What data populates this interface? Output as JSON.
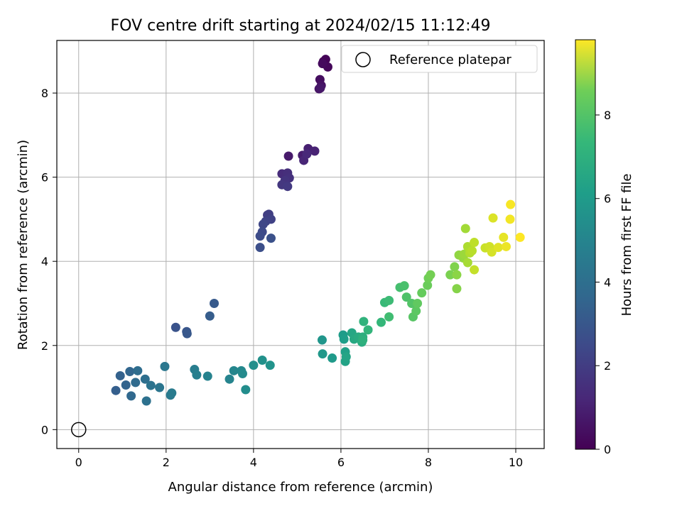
{
  "chart_data": {
    "type": "scatter",
    "title": "FOV centre drift starting at 2024/02/15 11:12:49",
    "xlabel": "Angular distance from reference (arcmin)",
    "ylabel": "Rotation from reference (arcmin)",
    "xlim": [
      -0.5,
      10.65
    ],
    "ylim": [
      -0.45,
      9.25
    ],
    "xticks": [
      0,
      2,
      4,
      6,
      8,
      10
    ],
    "yticks": [
      0,
      2,
      4,
      6,
      8
    ],
    "grid": true,
    "legend": {
      "placement": "top-right",
      "entries": [
        "Reference platepar"
      ]
    },
    "colorbar": {
      "label": "Hours from first FF file",
      "colormap": "viridis",
      "range": [
        0,
        9.8
      ],
      "ticks": [
        0,
        2,
        4,
        6,
        8
      ]
    },
    "reference_point": {
      "label": "Reference platepar",
      "x": 0,
      "y": 0
    },
    "series": [
      {
        "points": [
          [
            5.6,
            8.75
          ],
          [
            5.65,
            8.8
          ],
          [
            5.7,
            8.62
          ],
          [
            5.58,
            8.7
          ],
          [
            5.52,
            8.32
          ],
          [
            5.55,
            8.18
          ],
          [
            5.5,
            8.1
          ],
          [
            5.53,
            8.12
          ],
          [
            4.8,
            6.5
          ],
          [
            5.12,
            6.52
          ],
          [
            5.25,
            6.68
          ],
          [
            5.4,
            6.62
          ],
          [
            5.15,
            6.4
          ],
          [
            5.22,
            6.55
          ],
          [
            4.65,
            6.08
          ],
          [
            4.78,
            6.1
          ],
          [
            4.82,
            5.98
          ],
          [
            4.72,
            5.92
          ],
          [
            4.65,
            5.82
          ],
          [
            4.78,
            5.78
          ],
          [
            4.32,
            5.1
          ],
          [
            4.35,
            5.12
          ],
          [
            4.4,
            5.0
          ],
          [
            4.28,
            4.95
          ],
          [
            4.22,
            4.88
          ],
          [
            4.2,
            4.7
          ],
          [
            4.15,
            4.6
          ],
          [
            4.15,
            4.33
          ],
          [
            4.4,
            4.55
          ],
          [
            2.22,
            2.43
          ],
          [
            2.47,
            2.33
          ],
          [
            2.48,
            2.28
          ],
          [
            3.1,
            3.0
          ],
          [
            3.0,
            2.7
          ],
          [
            0.85,
            0.93
          ],
          [
            0.95,
            1.28
          ],
          [
            1.08,
            1.06
          ],
          [
            1.17,
            1.38
          ],
          [
            1.2,
            0.8
          ],
          [
            1.3,
            1.12
          ],
          [
            1.35,
            1.4
          ],
          [
            1.52,
            1.2
          ],
          [
            1.55,
            0.68
          ],
          [
            1.65,
            1.05
          ],
          [
            1.85,
            1.0
          ],
          [
            1.97,
            1.5
          ],
          [
            2.1,
            0.82
          ],
          [
            2.13,
            0.87
          ],
          [
            2.65,
            1.43
          ],
          [
            2.7,
            1.3
          ],
          [
            2.95,
            1.27
          ],
          [
            3.45,
            1.2
          ],
          [
            3.55,
            1.4
          ],
          [
            3.72,
            1.4
          ],
          [
            3.75,
            1.33
          ],
          [
            3.82,
            0.95
          ],
          [
            4.0,
            1.53
          ],
          [
            4.2,
            1.65
          ],
          [
            4.38,
            1.53
          ],
          [
            5.57,
            2.13
          ],
          [
            5.58,
            1.8
          ],
          [
            5.8,
            1.7
          ],
          [
            6.05,
            2.25
          ],
          [
            6.07,
            2.15
          ],
          [
            6.1,
            1.85
          ],
          [
            6.1,
            1.62
          ],
          [
            6.12,
            1.73
          ],
          [
            6.25,
            2.3
          ],
          [
            6.3,
            2.15
          ],
          [
            6.4,
            2.2
          ],
          [
            6.48,
            2.08
          ],
          [
            6.5,
            2.2
          ],
          [
            6.5,
            2.13
          ],
          [
            6.52,
            2.57
          ],
          [
            6.62,
            2.37
          ],
          [
            6.92,
            2.55
          ],
          [
            7.0,
            3.02
          ],
          [
            7.1,
            3.07
          ],
          [
            7.1,
            2.68
          ],
          [
            7.35,
            3.38
          ],
          [
            7.45,
            3.42
          ],
          [
            7.5,
            3.15
          ],
          [
            7.62,
            3.0
          ],
          [
            7.65,
            2.68
          ],
          [
            7.72,
            2.82
          ],
          [
            7.75,
            3.0
          ],
          [
            7.85,
            3.25
          ],
          [
            7.98,
            3.43
          ],
          [
            8.0,
            3.6
          ],
          [
            8.05,
            3.68
          ],
          [
            8.5,
            3.68
          ],
          [
            8.6,
            3.87
          ],
          [
            8.65,
            3.35
          ],
          [
            8.65,
            3.68
          ],
          [
            8.7,
            4.15
          ],
          [
            8.8,
            4.08
          ],
          [
            8.82,
            4.17
          ],
          [
            8.85,
            4.78
          ],
          [
            8.9,
            3.97
          ],
          [
            8.9,
            4.35
          ],
          [
            8.95,
            4.2
          ],
          [
            9.0,
            4.25
          ],
          [
            9.05,
            4.45
          ],
          [
            9.05,
            3.8
          ],
          [
            9.3,
            4.32
          ],
          [
            9.4,
            4.35
          ],
          [
            9.45,
            4.22
          ],
          [
            9.48,
            5.03
          ],
          [
            9.6,
            4.33
          ],
          [
            9.72,
            4.57
          ],
          [
            9.78,
            4.35
          ],
          [
            9.87,
            5.0
          ],
          [
            9.88,
            5.35
          ],
          [
            10.1,
            4.57
          ]
        ]
      }
    ]
  }
}
